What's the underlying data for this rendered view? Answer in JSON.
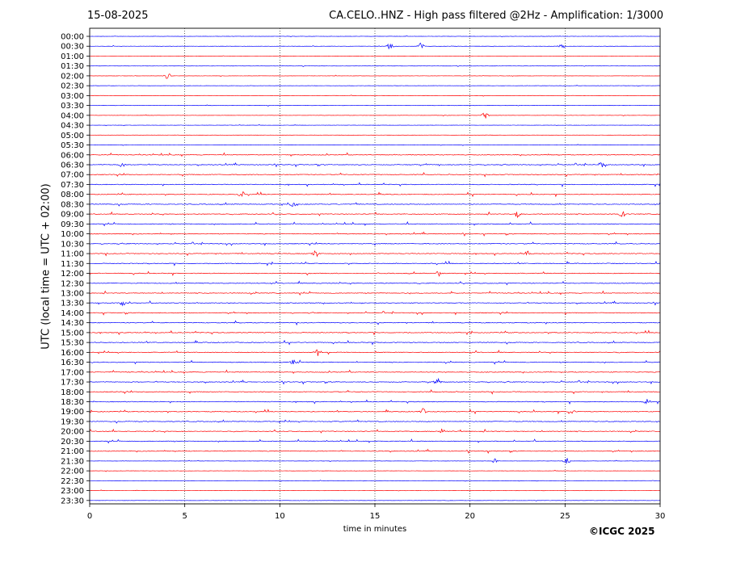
{
  "header": {
    "date": "15-08-2025",
    "station_title": "CA.CELO..HNZ - High pass filtered @2Hz - Amplification: 1/3000"
  },
  "footer": {
    "copyright": "©ICGC 2025"
  },
  "chart_data": {
    "type": "line",
    "title": "CA.CELO..HNZ - High pass filtered @2Hz - Amplification: 1/3000",
    "subtitle": "15-08-2025",
    "xlabel": "time in minutes",
    "ylabel": "UTC (local time = UTC + 02:00)",
    "xlim": [
      0,
      30
    ],
    "x_ticks": [
      "0",
      "5",
      "10",
      "15",
      "20",
      "25",
      "30"
    ],
    "grid": "vertical dotted lines at 5-minute intervals",
    "trace_colors": [
      "#0000ff",
      "#ff0000"
    ],
    "rows": [
      "00:00",
      "00:30",
      "01:00",
      "01:30",
      "02:00",
      "02:30",
      "03:00",
      "03:30",
      "04:00",
      "04:30",
      "05:00",
      "05:30",
      "06:00",
      "06:30",
      "07:00",
      "07:30",
      "08:00",
      "08:30",
      "09:00",
      "09:30",
      "10:00",
      "10:30",
      "11:00",
      "11:30",
      "12:00",
      "12:30",
      "13:00",
      "13:30",
      "14:00",
      "14:30",
      "15:00",
      "15:30",
      "16:00",
      "16:30",
      "17:00",
      "17:30",
      "18:00",
      "18:30",
      "19:00",
      "19:30",
      "20:00",
      "20:30",
      "21:00",
      "21:30",
      "22:00",
      "22:30",
      "23:00",
      "23:30"
    ],
    "row_colors": [
      "blue",
      "blue",
      "red",
      "blue",
      "red",
      "blue",
      "red",
      "blue",
      "red",
      "blue",
      "red",
      "blue",
      "red",
      "blue",
      "red",
      "blue",
      "red",
      "blue",
      "red",
      "blue",
      "red",
      "blue",
      "red",
      "blue",
      "red",
      "blue",
      "red",
      "blue",
      "red",
      "blue",
      "red",
      "blue",
      "red",
      "blue",
      "red",
      "blue",
      "red",
      "blue",
      "red",
      "blue",
      "red",
      "blue",
      "red",
      "blue",
      "red",
      "blue",
      "red",
      "blue"
    ],
    "notable_events_minutes": [
      {
        "row": "00:30",
        "minutes": [
          15.8,
          17.4,
          24.8
        ]
      },
      {
        "row": "02:00",
        "minutes": [
          4.1
        ]
      },
      {
        "row": "04:00",
        "minutes": [
          20.8
        ]
      },
      {
        "row": "06:30",
        "minutes": [
          1.7,
          26.9
        ]
      },
      {
        "row": "08:00",
        "minutes": [
          8.0
        ]
      },
      {
        "row": "08:30",
        "minutes": [
          10.7
        ]
      },
      {
        "row": "09:00",
        "minutes": [
          22.5,
          28.0
        ]
      },
      {
        "row": "11:00",
        "minutes": [
          11.9,
          23.0
        ]
      },
      {
        "row": "12:00",
        "minutes": [
          18.4
        ]
      },
      {
        "row": "13:30",
        "minutes": [
          1.7
        ]
      },
      {
        "row": "16:00",
        "minutes": [
          12.0
        ]
      },
      {
        "row": "16:30",
        "minutes": [
          10.7
        ]
      },
      {
        "row": "17:30",
        "minutes": [
          18.3
        ]
      },
      {
        "row": "18:30",
        "minutes": [
          29.3
        ]
      },
      {
        "row": "19:00",
        "minutes": [
          17.5,
          25.3
        ]
      },
      {
        "row": "20:00",
        "minutes": [
          18.5
        ]
      },
      {
        "row": "21:30",
        "minutes": [
          21.3,
          25.1
        ]
      }
    ]
  }
}
